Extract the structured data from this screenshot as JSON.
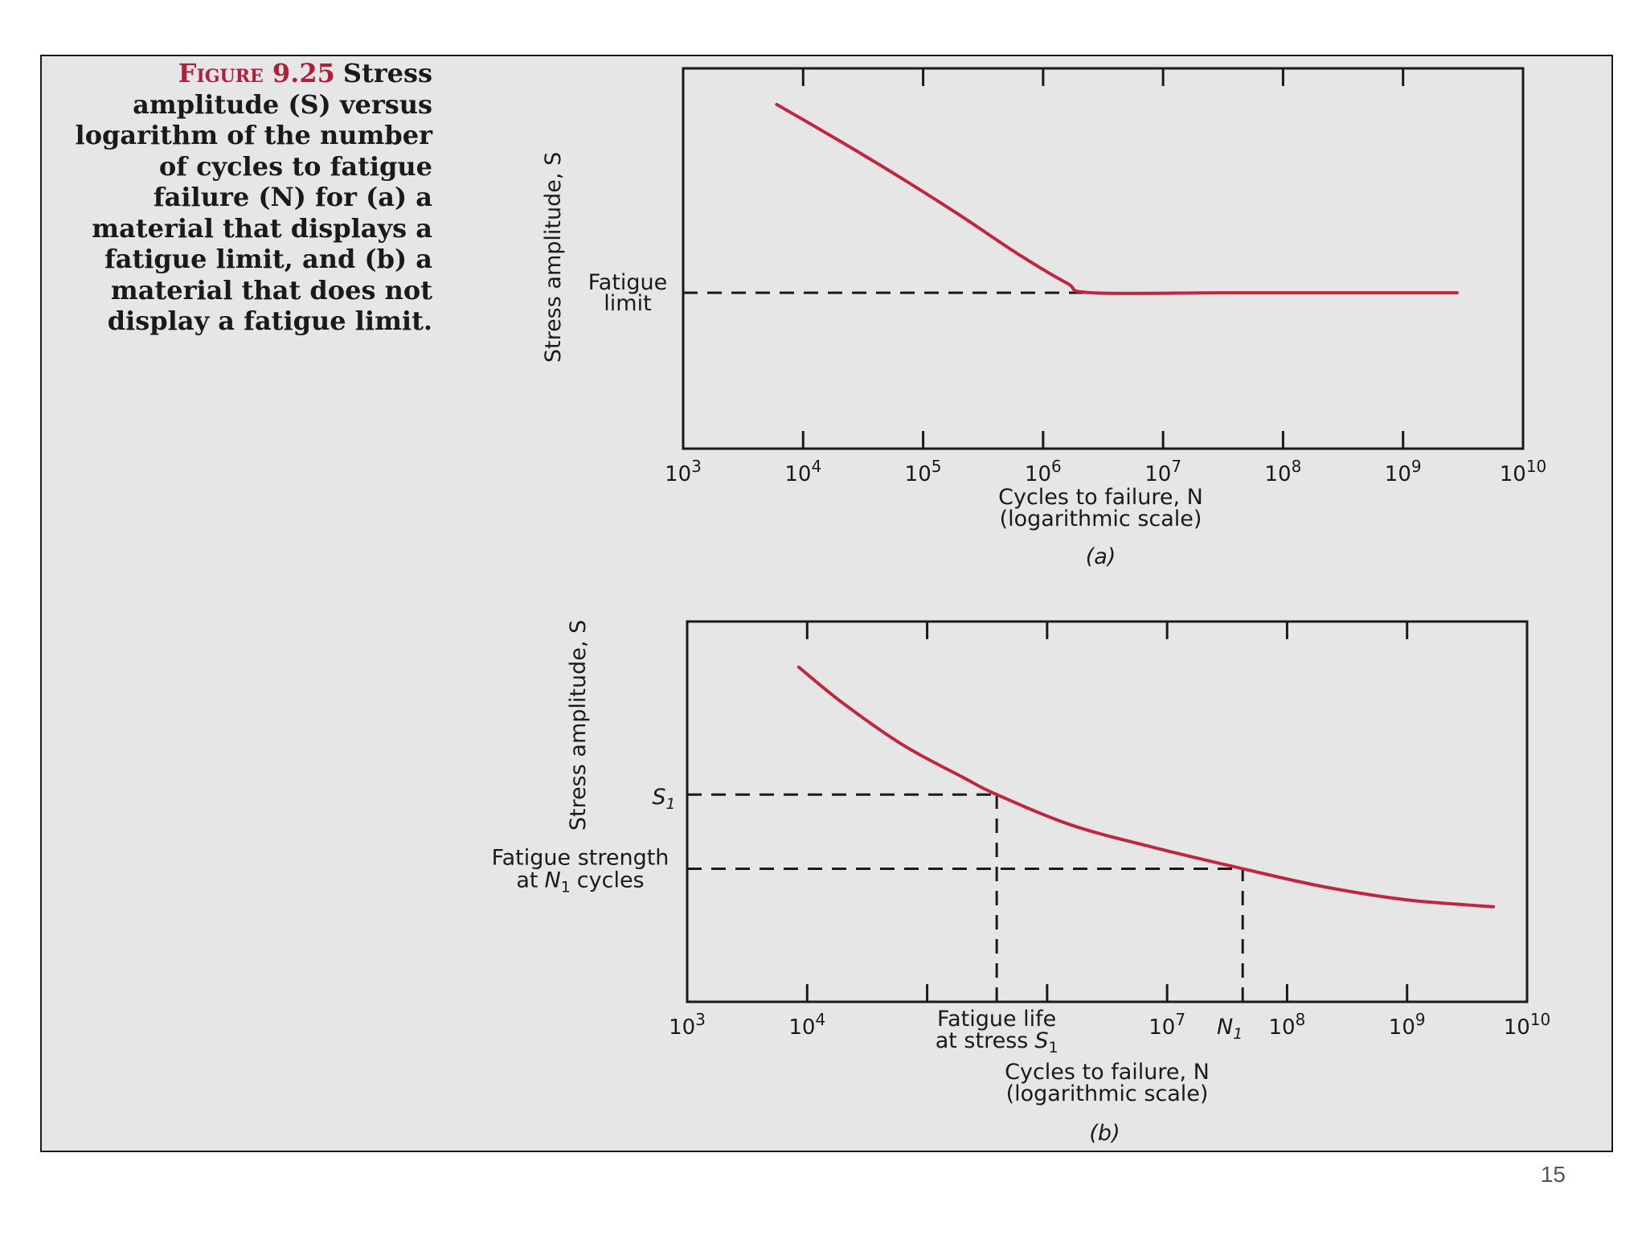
{
  "caption": {
    "figure_label": "Figure 9.25",
    "text": "Stress amplitude (S) versus logarithm of the number of cycles to fatigue failure (N) for (a) a material that displays a fatigue limit, and (b) a material that does not display a fatigue limit."
  },
  "page_number": "15",
  "colors": {
    "curve": "#c0263f",
    "axis": "#1a1a1a",
    "background": "#e6e6e6"
  },
  "chart_data": [
    {
      "type": "line",
      "panel_label": "(a)",
      "xlabel": "Cycles to failure, N",
      "xlabel_note": "(logarithmic scale)",
      "ylabel": "Stress amplitude, S",
      "x_scale": "log10",
      "xlim": [
        3,
        10
      ],
      "ylim": [
        0,
        1
      ],
      "x_ticks": [
        3,
        4,
        5,
        6,
        7,
        8,
        9,
        10
      ],
      "x_tick_labels": [
        "10",
        "10",
        "10",
        "10",
        "10",
        "10",
        "10",
        "10"
      ],
      "x_tick_exponents": [
        "3",
        "4",
        "5",
        "6",
        "7",
        "8",
        "9",
        "10"
      ],
      "y_annotation": {
        "line1": "Fatigue",
        "line2": "limit",
        "y": 0.41
      },
      "series": [
        {
          "name": "S-N curve (material with fatigue limit)",
          "x": [
            3.78,
            4.3,
            4.8,
            5.3,
            5.8,
            6.2,
            6.4,
            7.5,
            8.5,
            9.45
          ],
          "y": [
            0.905,
            0.81,
            0.715,
            0.615,
            0.51,
            0.435,
            0.41,
            0.41,
            0.41,
            0.41
          ]
        }
      ],
      "reference_lines": [
        {
          "orientation": "horizontal",
          "y": 0.41,
          "x_from": 3,
          "x_to": 6.4
        }
      ]
    },
    {
      "type": "line",
      "panel_label": "(b)",
      "xlabel": "Cycles to failure, N",
      "xlabel_note": "(logarithmic scale)",
      "ylabel": "Stress amplitude, S",
      "x_scale": "log10",
      "xlim": [
        3,
        10
      ],
      "ylim": [
        0,
        1
      ],
      "x_ticks": [
        3,
        4,
        5,
        6,
        7,
        8,
        9,
        10
      ],
      "x_tick_labels": [
        "10",
        "10",
        "",
        "",
        "10",
        "10",
        "10",
        "10"
      ],
      "x_tick_exponents": [
        "3",
        "4",
        "",
        "",
        "7",
        "8",
        "9",
        "10"
      ],
      "annotations": {
        "s1_label": "S",
        "s1_sub": "1",
        "fatigue_strength_line1": "Fatigue strength",
        "fatigue_strength_line2_pre": "at",
        "fatigue_strength_N": "N",
        "fatigue_strength_sub": "1",
        "fatigue_strength_line2_post": "cycles",
        "fatigue_life_line1": "Fatigue life",
        "fatigue_life_line2": "at stress",
        "fatigue_life_S": "S",
        "fatigue_life_sub": "1",
        "n1_label": "N",
        "n1_sub": "1"
      },
      "s1_level": 0.545,
      "fatigue_strength_level": 0.35,
      "fatigue_life_x": 5.58,
      "n1_x": 7.63,
      "series": [
        {
          "name": "S-N curve (material without fatigue limit)",
          "x": [
            3.93,
            4.3,
            4.8,
            5.3,
            5.58,
            6.2,
            6.9,
            7.63,
            8.3,
            9.0,
            9.72
          ],
          "y": [
            0.88,
            0.785,
            0.675,
            0.59,
            0.545,
            0.465,
            0.405,
            0.35,
            0.303,
            0.268,
            0.25
          ]
        }
      ],
      "reference_lines": [
        {
          "orientation": "horizontal",
          "y": 0.545,
          "x_from": 3,
          "x_to": 5.58
        },
        {
          "orientation": "horizontal",
          "y": 0.35,
          "x_from": 3,
          "x_to": 7.63
        },
        {
          "orientation": "vertical",
          "x": 5.58,
          "y_from": 0,
          "y_to": 0.545
        },
        {
          "orientation": "vertical",
          "x": 7.63,
          "y_from": 0,
          "y_to": 0.35
        }
      ]
    }
  ]
}
